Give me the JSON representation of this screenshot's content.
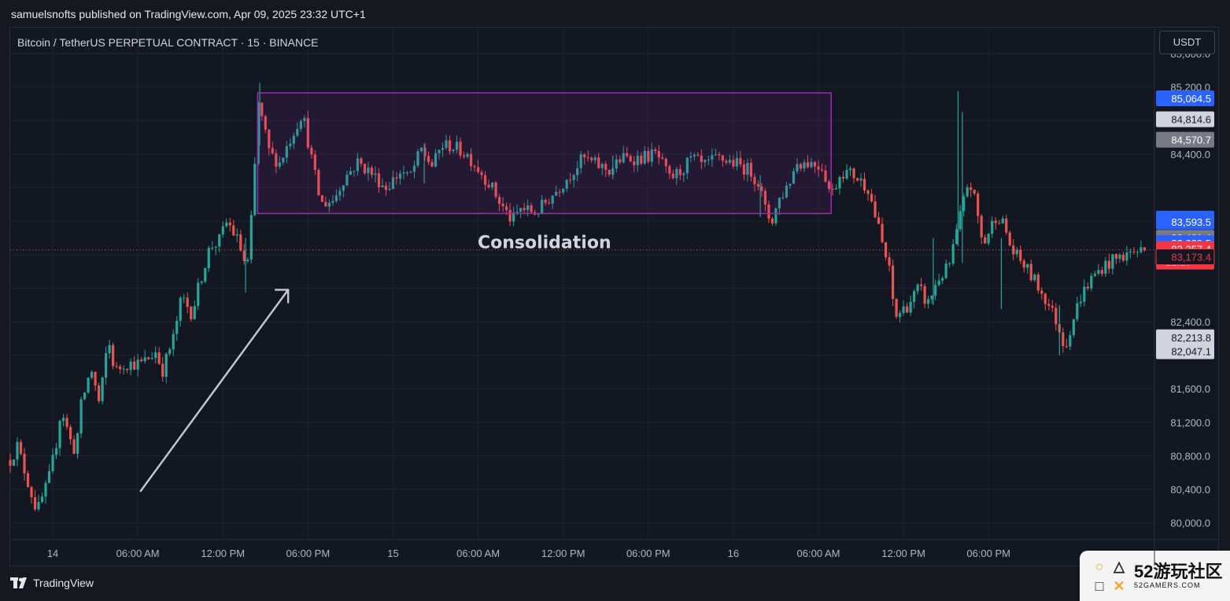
{
  "header": {
    "publisher_line": "samuelsnofts published on TradingView.com, Apr 09, 2025 23:32 UTC+1"
  },
  "chart_header": {
    "symbol_title": "Bitcoin / TetherUS PERPETUAL CONTRACT · 15 · BINANCE",
    "currency": "USDT"
  },
  "footer": {
    "brand": "TradingView"
  },
  "watermark": {
    "line1": "52游玩社区",
    "line2": "52GAMERS.COM"
  },
  "colors": {
    "up": "#26a69a",
    "down": "#ef5350",
    "background": "#131722",
    "grid": "#1f2430",
    "box": "#9c27b0",
    "arrow": "#c9cbd1",
    "price_line": "#ef5350"
  },
  "chart_data": {
    "type": "candlestick",
    "title": "Bitcoin / TetherUS PERPETUAL CONTRACT · 15 · BINANCE",
    "ylim": [
      79800,
      85900
    ],
    "y_ticks": [
      80000,
      80400,
      80800,
      81200,
      81600,
      82000,
      82400,
      82800,
      83200,
      83600,
      84000,
      84400,
      84800,
      85200,
      85600
    ],
    "y_tick_labels": [
      "80,000.0",
      "80,400.0",
      "80,800.0",
      "81,200.0",
      "81,600.0",
      "",
      "82,400.0",
      "",
      "",
      "",
      "",
      "84,400.0",
      "",
      "85,200.0",
      "85,600.0"
    ],
    "x_range_hours": [
      -3,
      77.7
    ],
    "x_ticks": [
      {
        "h": 0,
        "label": "14"
      },
      {
        "h": 6,
        "label": "06:00 AM"
      },
      {
        "h": 12,
        "label": "12:00 PM"
      },
      {
        "h": 18,
        "label": "06:00 PM"
      },
      {
        "h": 24,
        "label": "15"
      },
      {
        "h": 30,
        "label": "06:00 AM"
      },
      {
        "h": 36,
        "label": "12:00 PM"
      },
      {
        "h": 42,
        "label": "06:00 PM"
      },
      {
        "h": 48,
        "label": "16"
      },
      {
        "h": 54,
        "label": "06:00 AM"
      },
      {
        "h": 60,
        "label": "12:00 PM"
      },
      {
        "h": 66,
        "label": "06:00 PM"
      }
    ],
    "close_path": [
      [
        -3,
        80750
      ],
      [
        -2.5,
        80920
      ],
      [
        -1.6,
        80400
      ],
      [
        -1.1,
        80130
      ],
      [
        -0.3,
        80500
      ],
      [
        0.2,
        80900
      ],
      [
        0.6,
        81380
      ],
      [
        1.2,
        81000
      ],
      [
        1.6,
        80850
      ],
      [
        2.0,
        81400
      ],
      [
        2.7,
        81850
      ],
      [
        3.3,
        81400
      ],
      [
        3.9,
        82200
      ],
      [
        4.4,
        81800
      ],
      [
        5.0,
        81900
      ],
      [
        6.3,
        81900
      ],
      [
        7.3,
        82050
      ],
      [
        7.7,
        81800
      ],
      [
        8.5,
        82200
      ],
      [
        9.1,
        82700
      ],
      [
        9.8,
        82500
      ],
      [
        10.5,
        82950
      ],
      [
        11.1,
        83300
      ],
      [
        11.7,
        83350
      ],
      [
        12.3,
        83600
      ],
      [
        13.1,
        83350
      ],
      [
        13.7,
        83000
      ],
      [
        14.1,
        83800
      ],
      [
        14.5,
        85000
      ],
      [
        15.3,
        84400
      ],
      [
        16.0,
        84300
      ],
      [
        16.8,
        84600
      ],
      [
        17.6,
        84900
      ],
      [
        18.3,
        84300
      ],
      [
        18.9,
        83800
      ],
      [
        19.8,
        83850
      ],
      [
        20.5,
        84100
      ],
      [
        21.5,
        84300
      ],
      [
        22.3,
        84200
      ],
      [
        23.5,
        84000
      ],
      [
        24.6,
        84200
      ],
      [
        25.1,
        84100
      ],
      [
        26.0,
        84450
      ],
      [
        26.8,
        84250
      ],
      [
        27.4,
        84500
      ],
      [
        28.1,
        84500
      ],
      [
        29.2,
        84400
      ],
      [
        30.8,
        84050
      ],
      [
        31.6,
        83800
      ],
      [
        32.4,
        83600
      ],
      [
        33.0,
        83750
      ],
      [
        34.1,
        83700
      ],
      [
        34.9,
        83850
      ],
      [
        35.7,
        84000
      ],
      [
        36.7,
        84200
      ],
      [
        37.4,
        84350
      ],
      [
        38.0,
        84300
      ],
      [
        39.3,
        84200
      ],
      [
        40.1,
        84350
      ],
      [
        41.3,
        84350
      ],
      [
        42.6,
        84400
      ],
      [
        43.5,
        84100
      ],
      [
        44.3,
        84200
      ],
      [
        45.1,
        84350
      ],
      [
        45.9,
        84250
      ],
      [
        46.9,
        84350
      ],
      [
        48.0,
        84300
      ],
      [
        49.2,
        84200
      ],
      [
        49.8,
        84050
      ],
      [
        50.3,
        83700
      ],
      [
        50.7,
        83600
      ],
      [
        51.2,
        83850
      ],
      [
        51.9,
        84050
      ],
      [
        52.5,
        84300
      ],
      [
        53.4,
        84300
      ],
      [
        54.3,
        84250
      ],
      [
        54.9,
        83900
      ],
      [
        55.6,
        84200
      ],
      [
        56.5,
        84150
      ],
      [
        57.5,
        84000
      ],
      [
        57.8,
        83800
      ],
      [
        58.4,
        83400
      ],
      [
        59.0,
        83000
      ],
      [
        59.4,
        82450
      ],
      [
        60.3,
        82600
      ],
      [
        61.1,
        82800
      ],
      [
        61.7,
        82600
      ],
      [
        62.4,
        82900
      ],
      [
        63.2,
        83050
      ],
      [
        63.8,
        83500
      ],
      [
        64.6,
        84100
      ],
      [
        65.1,
        83800
      ],
      [
        65.6,
        83300
      ],
      [
        66.6,
        83700
      ],
      [
        67.2,
        83500
      ],
      [
        67.6,
        83250
      ],
      [
        68.4,
        83100
      ],
      [
        69.2,
        82900
      ],
      [
        70.1,
        82650
      ],
      [
        70.8,
        82400
      ],
      [
        71.4,
        82100
      ],
      [
        71.9,
        82400
      ],
      [
        72.5,
        82700
      ],
      [
        73.2,
        82900
      ],
      [
        74.0,
        83050
      ],
      [
        75.0,
        83150
      ],
      [
        76.1,
        83230
      ],
      [
        77.0,
        83257
      ]
    ],
    "spikes": [
      {
        "h": 14.6,
        "high": 85250,
        "low": 84500
      },
      {
        "h": 39.5,
        "high": 84380,
        "low": 84100
      },
      {
        "h": 63.85,
        "high": 85150,
        "low": 83300
      },
      {
        "h": 64.15,
        "high": 84900,
        "low": 83100
      },
      {
        "h": 62.1,
        "high": 83400,
        "low": 82600
      },
      {
        "h": 66.9,
        "high": 83400,
        "low": 82550
      },
      {
        "h": 13.6,
        "high": 83400,
        "low": 82750
      },
      {
        "h": 71.0,
        "high": 82600,
        "low": 82000
      },
      {
        "h": 49.9,
        "high": 84150,
        "low": 83650
      },
      {
        "h": 26.2,
        "high": 84520,
        "low": 84050
      }
    ],
    "annotations": [
      {
        "type": "rectangle",
        "from_h": 14.45,
        "to_h": 54.9,
        "top": 85130,
        "bottom": 83690,
        "label": "Consolidation"
      },
      {
        "type": "arrow",
        "from_h": 6.2,
        "from_price": 80380,
        "to_h": 16.6,
        "to_price": 82780
      }
    ],
    "current_price_line": 83257.4,
    "price_labels": [
      {
        "price": 85064.5,
        "text": "85,064.5",
        "bg": "#2962ff",
        "fg": "#ffffff"
      },
      {
        "price": 84814.6,
        "text": "84,814.6",
        "bg": "#d1d4dc",
        "fg": "#131722"
      },
      {
        "price": 84570.7,
        "text": "84,570.7",
        "bg": "#787b86",
        "fg": "#ffffff"
      },
      {
        "price": 83629.8,
        "text": "83,629.8",
        "bg": "#2962ff",
        "fg": "#ffffff"
      },
      {
        "price": 83593.5,
        "text": "83,593.5",
        "bg": "#2962ff",
        "fg": "#ffffff"
      },
      {
        "price": 83401.4,
        "text": "83,401.4",
        "bg": "#787b86",
        "fg": "#ffffff"
      },
      {
        "price": 83339.5,
        "text": "83,339.5",
        "bg": "#2962ff",
        "fg": "#ffffff"
      },
      {
        "price": 83257.4,
        "text": "83,257.4",
        "sub": "12:13",
        "bg": "#f23645",
        "fg": "#ffffff"
      },
      {
        "price": 83173.4,
        "text": "83,173.4",
        "bg": "#131722",
        "fg": "#f23645",
        "border": "#f23645"
      },
      {
        "price": 82213.8,
        "text": "82,213.8",
        "bg": "#d1d4dc",
        "fg": "#131722"
      },
      {
        "price": 82047.1,
        "text": "82,047.1",
        "bg": "#d1d4dc",
        "fg": "#131722"
      }
    ]
  }
}
